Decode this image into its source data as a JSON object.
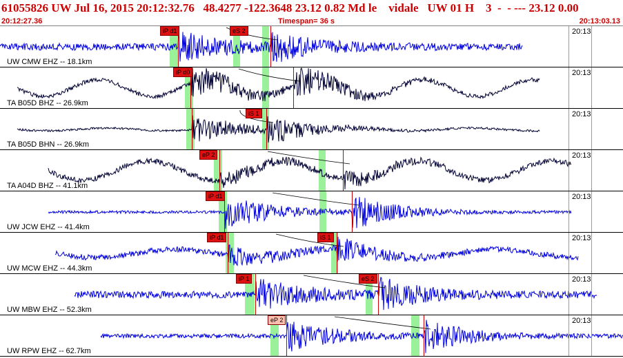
{
  "header": {
    "title": "61055826 UW Jul 16, 2015 20:12:32.76   48.4277 -122.3648 23.12 0.82 Md le    vidale   UW 01 H    3  -  - --- 23.12 0.00",
    "start_time": "20:12:27.36",
    "timespan": "Timespan=  36 s",
    "end_time": "20:13:03.13"
  },
  "colors": {
    "header_text": "#cc0000",
    "trace_blue": "#0000dd",
    "trace_black": "#000033",
    "pick_red": "#dd1111",
    "band_green": "#88ee88"
  },
  "traces": [
    {
      "label": "UW CMW EHZ -- 18.1km",
      "time": "20:13",
      "color": "blue",
      "picks": [
        {
          "label": "iP d1",
          "pale": false
        },
        {
          "label": "eS 2",
          "pale": false
        }
      ]
    },
    {
      "label": "TA B05D BHZ -- 26.9km",
      "time": "20:13",
      "color": "black",
      "picks": [
        {
          "label": "iP d0",
          "pale": false
        }
      ]
    },
    {
      "label": "TA B05D BHN -- 26.9km",
      "time": "20:13",
      "color": "black",
      "picks": [
        {
          "label": "iS 1",
          "pale": false
        }
      ]
    },
    {
      "label": "TA A04D BHZ -- 41.1km",
      "time": "20:13",
      "color": "black",
      "picks": [
        {
          "label": "eP 2",
          "pale": false
        }
      ]
    },
    {
      "label": "UW JCW EHZ -- 41.4km",
      "time": "20:13",
      "color": "blue",
      "picks": [
        {
          "label": "iP d1",
          "pale": false
        }
      ]
    },
    {
      "label": "UW MCW EHZ -- 44.3km",
      "time": "20:13",
      "color": "blue",
      "picks": [
        {
          "label": "iP d1",
          "pale": false
        },
        {
          "label": "iS 1",
          "pale": false
        }
      ]
    },
    {
      "label": "UW MBW EHZ -- 52.3km",
      "time": "20:13",
      "color": "blue",
      "picks": [
        {
          "label": "iP 1",
          "pale": false
        },
        {
          "label": "eS 2",
          "pale": false
        }
      ]
    },
    {
      "label": "UW RPW EHZ -- 62.7km",
      "time": "20:13",
      "color": "blue",
      "picks": [
        {
          "label": "eP 2",
          "pale": true
        }
      ]
    }
  ]
}
